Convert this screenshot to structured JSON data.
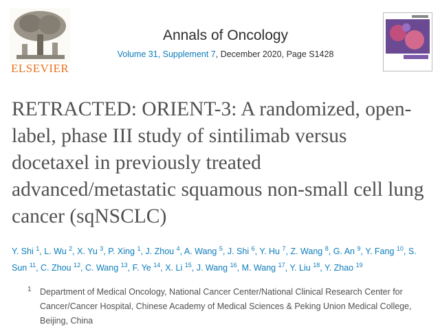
{
  "header": {
    "publisher": "ELSEVIER",
    "journal": "Annals of Oncology",
    "volume_link": "Volume 31, Supplement 7",
    "volume_rest": ", December 2020, Page S1428"
  },
  "article": {
    "title": "RETRACTED: ORIENT-3: A randomized, open-label, phase III study of sintilimab versus docetaxel in previously treated advanced/metastatic squamous non-small cell lung cancer (sqNSCLC)",
    "separator": ",",
    "authors": [
      {
        "name": "Y. Shi",
        "sup": "1"
      },
      {
        "name": "L. Wu",
        "sup": "2"
      },
      {
        "name": "X. Yu",
        "sup": "3"
      },
      {
        "name": "P. Xing",
        "sup": "1"
      },
      {
        "name": "J. Zhou",
        "sup": "4"
      },
      {
        "name": "A. Wang",
        "sup": "5"
      },
      {
        "name": "J. Shi",
        "sup": "6"
      },
      {
        "name": "Y. Hu",
        "sup": "7"
      },
      {
        "name": "Z. Wang",
        "sup": "8"
      },
      {
        "name": "G. An",
        "sup": "9"
      },
      {
        "name": "Y. Fang",
        "sup": "10"
      },
      {
        "name": "S. Sun",
        "sup": "11"
      },
      {
        "name": "C. Zhou",
        "sup": "12"
      },
      {
        "name": "C. Wang",
        "sup": "13"
      },
      {
        "name": "F. Ye",
        "sup": "14"
      },
      {
        "name": "X. Li",
        "sup": "15"
      },
      {
        "name": "J. Wang",
        "sup": "16"
      },
      {
        "name": "M. Wang",
        "sup": "17"
      },
      {
        "name": "Y. Liu",
        "sup": "18"
      },
      {
        "name": "Y. Zhao",
        "sup": "19"
      }
    ],
    "affiliations": [
      {
        "sup": "1",
        "text": "Department of Medical Oncology, National Cancer Center/National Clinical Research Center for Cancer/Cancer Hospital, Chinese Academy of Medical Sciences & Peking Union Medical College, Beijing, China"
      }
    ]
  }
}
